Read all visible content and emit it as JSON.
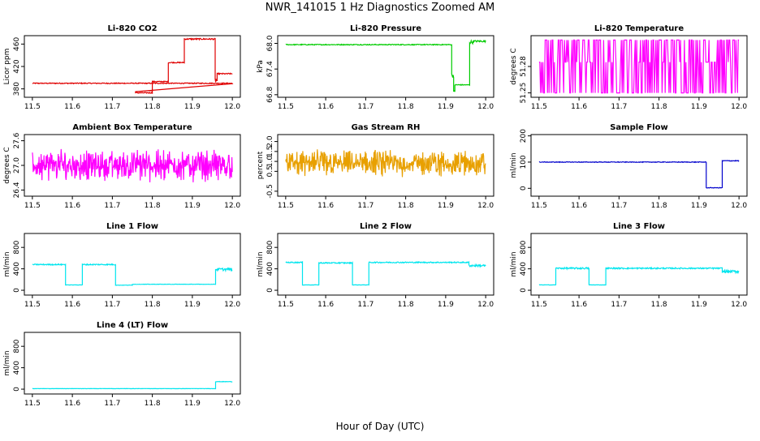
{
  "title": "NWR_141015  1 Hz Diagnostics Zoomed AM",
  "xlabel": "Hour of Day (UTC)",
  "colors": {
    "red": "#e00000",
    "green": "#00cc00",
    "magenta": "#ff00ff",
    "orange": "#e8a000",
    "blue": "#0000cc",
    "cyan": "#00e5ee"
  },
  "chart_data": [
    {
      "type": "line",
      "title": "Li-820 CO2",
      "ylabel": "Licor ppm",
      "color": "red",
      "xlim": [
        11.48,
        12.02
      ],
      "ylim": [
        365,
        475
      ],
      "xticks": [
        "11.5",
        "11.6",
        "11.7",
        "11.8",
        "11.9",
        "12.0"
      ],
      "yticks": [
        "380",
        "420",
        "460"
      ],
      "mode": "step",
      "segments": [
        [
          11.5,
          12.0,
          390,
          0.8
        ],
        [
          11.757,
          11.758,
          375,
          0
        ],
        [
          11.758,
          11.8,
          373,
          0.8
        ],
        [
          11.8,
          11.84,
          393,
          0.8
        ],
        [
          11.84,
          11.88,
          427,
          0.8
        ],
        [
          11.88,
          11.957,
          469,
          1.2
        ],
        [
          11.957,
          11.962,
          395,
          4
        ],
        [
          11.962,
          12.0,
          407,
          1
        ]
      ]
    },
    {
      "type": "line",
      "title": "Li-820 Pressure",
      "ylabel": "kPa",
      "color": "green",
      "xlim": [
        11.48,
        12.02
      ],
      "ylim": [
        66.74,
        68.18
      ],
      "xticks": [
        "11.5",
        "11.6",
        "11.7",
        "11.8",
        "11.9",
        "12.0"
      ],
      "yticks": [
        "66.8",
        "67.4",
        "68.0"
      ],
      "mode": "step",
      "segments": [
        [
          11.5,
          11.915,
          67.97,
          0.01
        ],
        [
          11.915,
          11.92,
          67.25,
          0.05
        ],
        [
          11.92,
          11.923,
          66.87,
          0.03
        ],
        [
          11.923,
          11.96,
          67.03,
          0.01
        ],
        [
          11.96,
          11.97,
          68.03,
          0.04
        ],
        [
          11.97,
          12.0,
          68.05,
          0.02
        ]
      ]
    },
    {
      "type": "line",
      "title": "Li-820 Temperature",
      "ylabel": "degrees C",
      "color": "magenta",
      "xlim": [
        11.48,
        12.02
      ],
      "ylim": [
        51.245,
        51.315
      ],
      "xticks": [
        "11.5",
        "11.6",
        "11.7",
        "11.8",
        "11.9",
        "12.0"
      ],
      "yticks": [
        "51.25",
        "51.28"
      ],
      "mode": "binary",
      "levels": [
        51.25,
        51.285,
        51.31
      ]
    },
    {
      "type": "line",
      "title": "Ambient Box Temperature",
      "ylabel": "degrees C",
      "color": "magenta",
      "xlim": [
        11.48,
        12.02
      ],
      "ylim": [
        26.25,
        27.75
      ],
      "xticks": [
        "11.5",
        "11.6",
        "11.7",
        "11.8",
        "11.9",
        "12.0"
      ],
      "yticks": [
        "26.4",
        "27.0",
        "27.6"
      ],
      "mode": "noise",
      "center": 27.0,
      "spread": 0.22
    },
    {
      "type": "line",
      "title": "Gas Stream RH",
      "ylabel": "percent",
      "color": "orange",
      "xlim": [
        11.48,
        12.02
      ],
      "ylim": [
        -0.75,
        2.35
      ],
      "xticks": [
        "11.5",
        "11.6",
        "11.7",
        "11.8",
        "11.9",
        "12.0"
      ],
      "yticks": [
        "-0.5",
        "0.5",
        "1.0",
        "1.5",
        "2.0"
      ],
      "mode": "noise",
      "center": 0.9,
      "spread": 0.38
    },
    {
      "type": "line",
      "title": "Sample Flow",
      "ylabel": "ml/min",
      "color": "blue",
      "xlim": [
        11.48,
        12.02
      ],
      "ylim": [
        -30,
        205
      ],
      "xticks": [
        "11.5",
        "11.6",
        "11.7",
        "11.8",
        "11.9",
        "12.0"
      ],
      "yticks": [
        "0",
        "100",
        "200"
      ],
      "mode": "step",
      "segments": [
        [
          11.5,
          11.918,
          100,
          1.2
        ],
        [
          11.918,
          11.958,
          2,
          1
        ],
        [
          11.958,
          12.0,
          105,
          1.5
        ]
      ]
    },
    {
      "type": "line",
      "title": "Line 1 Flow",
      "ylabel": "ml/min",
      "color": "cyan",
      "xlim": [
        11.48,
        12.02
      ],
      "ylim": [
        -90,
        1060
      ],
      "xticks": [
        "11.5",
        "11.6",
        "11.7",
        "11.8",
        "11.9",
        "12.0"
      ],
      "yticks": [
        "0",
        "400",
        "800"
      ],
      "mode": "step",
      "segments": [
        [
          11.5,
          11.583,
          480,
          10
        ],
        [
          11.583,
          11.625,
          100,
          3
        ],
        [
          11.625,
          11.708,
          480,
          10
        ],
        [
          11.708,
          11.75,
          95,
          3
        ],
        [
          11.75,
          11.958,
          112,
          3
        ],
        [
          11.958,
          12.0,
          390,
          25
        ]
      ]
    },
    {
      "type": "line",
      "title": "Line 2 Flow",
      "ylabel": "ml/min",
      "color": "cyan",
      "xlim": [
        11.48,
        12.02
      ],
      "ylim": [
        -90,
        1060
      ],
      "xticks": [
        "11.5",
        "11.6",
        "11.7",
        "11.8",
        "11.9",
        "12.0"
      ],
      "yticks": [
        "0",
        "400",
        "800"
      ],
      "mode": "step",
      "segments": [
        [
          11.5,
          11.542,
          520,
          10
        ],
        [
          11.542,
          11.583,
          100,
          3
        ],
        [
          11.583,
          11.667,
          510,
          10
        ],
        [
          11.667,
          11.708,
          100,
          3
        ],
        [
          11.708,
          11.958,
          520,
          10
        ],
        [
          11.958,
          12.0,
          460,
          20
        ]
      ]
    },
    {
      "type": "line",
      "title": "Line 3 Flow",
      "ylabel": "ml/min",
      "color": "cyan",
      "xlim": [
        11.48,
        12.02
      ],
      "ylim": [
        -90,
        1060
      ],
      "xticks": [
        "11.5",
        "11.6",
        "11.7",
        "11.8",
        "11.9",
        "12.0"
      ],
      "yticks": [
        "0",
        "400",
        "800"
      ],
      "mode": "step",
      "segments": [
        [
          11.5,
          11.542,
          100,
          3
        ],
        [
          11.542,
          11.625,
          410,
          15
        ],
        [
          11.625,
          11.667,
          100,
          3
        ],
        [
          11.667,
          11.958,
          410,
          12
        ],
        [
          11.958,
          12.0,
          350,
          25
        ]
      ]
    },
    {
      "type": "line",
      "title": "Line 4 (LT) Flow",
      "ylabel": "ml/min",
      "color": "cyan",
      "xlim": [
        11.48,
        12.02
      ],
      "ylim": [
        -90,
        1060
      ],
      "xticks": [
        "11.5",
        "11.6",
        "11.7",
        "11.8",
        "11.9",
        "12.0"
      ],
      "yticks": [
        "0",
        "400",
        "800"
      ],
      "mode": "step",
      "segments": [
        [
          11.5,
          11.958,
          10,
          2
        ],
        [
          11.958,
          12.0,
          140,
          4
        ]
      ]
    }
  ]
}
